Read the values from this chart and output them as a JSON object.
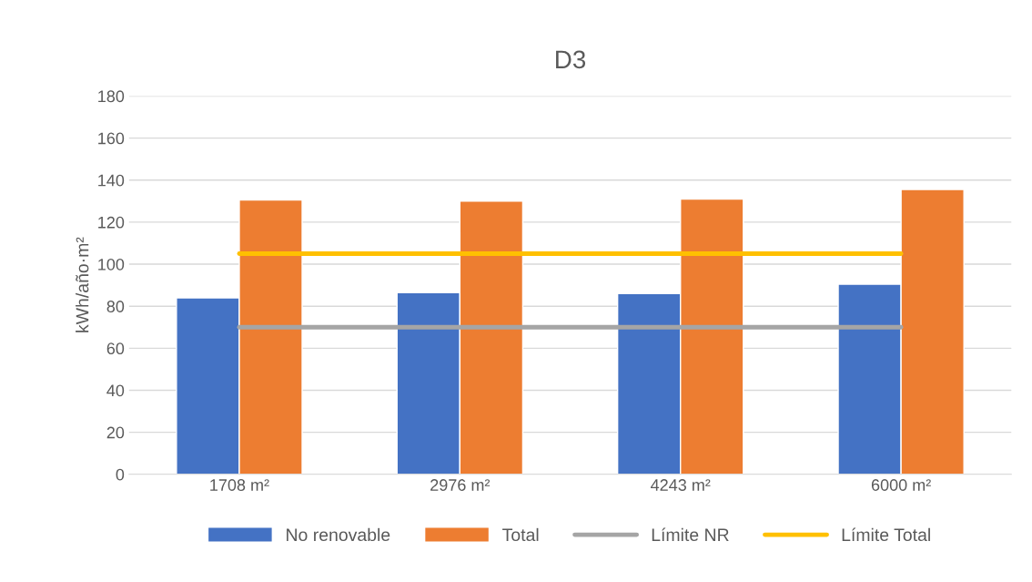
{
  "chart_data": {
    "type": "bar",
    "title": "D3",
    "ylabel": "kWh/año·m²",
    "categories": [
      "1708 m²",
      "2976 m²",
      "4243 m²",
      "6000 m²"
    ],
    "series": [
      {
        "name": "No renovable",
        "color": "#4472c4",
        "values": [
          84,
          86.5,
          86,
          90.5
        ]
      },
      {
        "name": "Total",
        "color": "#ed7d31",
        "values": [
          130.5,
          130,
          131,
          135.5
        ]
      },
      {
        "name": "Límite NR",
        "color": "#a5a5a5",
        "type": "line",
        "values": [
          70,
          70,
          70,
          70
        ]
      },
      {
        "name": "Límite Total",
        "color": "#ffc000",
        "type": "line",
        "values": [
          105,
          105,
          105,
          105
        ]
      }
    ],
    "ylim": [
      0,
      180
    ],
    "yticks": [
      0,
      20,
      40,
      60,
      80,
      100,
      120,
      140,
      160,
      180
    ],
    "grid": "y",
    "legend": "bottom",
    "marker": "none",
    "line_style": "solid"
  }
}
